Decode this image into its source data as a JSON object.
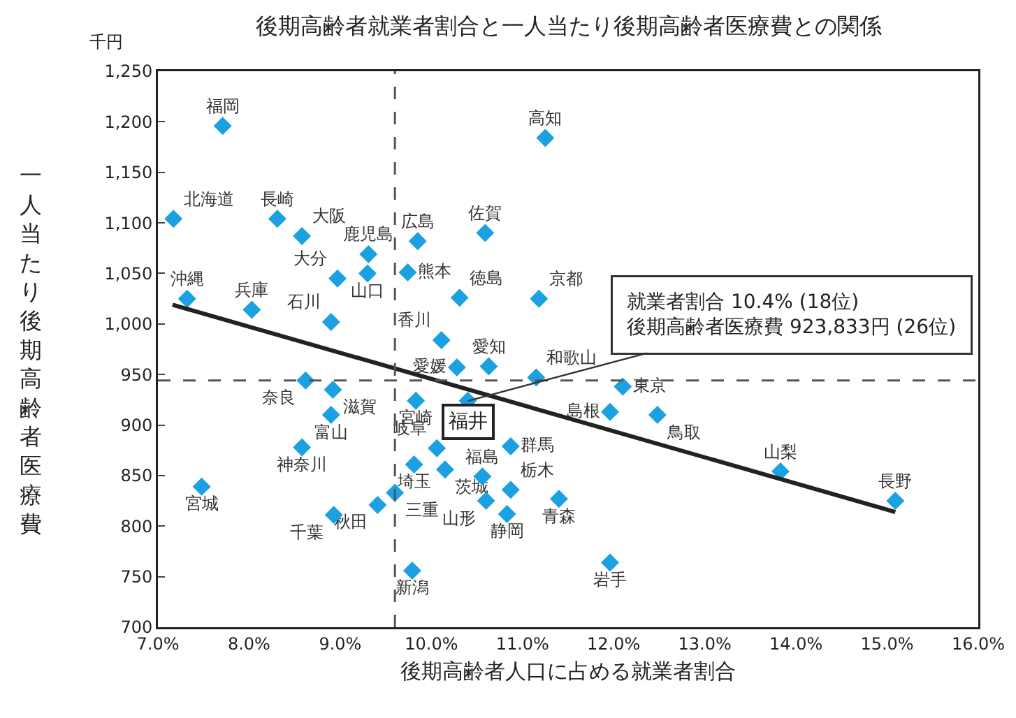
{
  "chart_data": {
    "type": "scatter",
    "title": "後期高齢者就業者割合と一人当たり後期高齢者医療費との関係",
    "xlabel": "後期高齢者人口に占める就業者割合",
    "ylabel": "一人当たり後期高齢者医療費",
    "annotations": [
      "千円",
      {
        "text": "就業者割合 10.4% (18位)\n後期高齢者医療費 923,833円 (26位)",
        "x": 10.4,
        "y": 923.833
      }
    ],
    "marker": "diamond",
    "xlim": [
      7,
      16
    ],
    "ylim": [
      700,
      1250
    ],
    "xticks": [
      {
        "value": 7,
        "label": "7.0%"
      },
      {
        "value": 8,
        "label": "8.0%"
      },
      {
        "value": 9,
        "label": "9.0%"
      },
      {
        "value": 10,
        "label": "10.0%"
      },
      {
        "value": 11,
        "label": "11.0%"
      },
      {
        "value": 12,
        "label": "12.0%"
      },
      {
        "value": 13,
        "label": "13.0%"
      },
      {
        "value": 14,
        "label": "14.0%"
      },
      {
        "value": 15,
        "label": "15.0%"
      },
      {
        "value": 16,
        "label": "16.0%"
      }
    ],
    "yticks": [
      700,
      750,
      800,
      850,
      900,
      950,
      {
        "value": 1000,
        "label": "1,000"
      },
      {
        "value": 1050,
        "label": "1,050"
      },
      {
        "value": 1100,
        "label": "1,100"
      },
      {
        "value": 1150,
        "label": "1,150"
      },
      {
        "value": 1200,
        "label": "1,200"
      },
      {
        "value": 1250,
        "label": "1,250"
      }
    ],
    "ref_lines": [
      {
        "axis": "x",
        "value": 9.6,
        "color": "#555555",
        "line_style": "dashed"
      },
      {
        "axis": "y",
        "value": 944,
        "color": "#555555",
        "line_style": "dashed"
      }
    ],
    "series": [
      {
        "name": "福岡",
        "color": "#1ba1e2",
        "x": [
          7.71
        ],
        "values": [
          1196
        ]
      },
      {
        "name": "北海道",
        "color": "#1ba1e2",
        "x": [
          7.17
        ],
        "values": [
          1104
        ]
      },
      {
        "name": "長崎",
        "color": "#1ba1e2",
        "x": [
          8.31
        ],
        "values": [
          1104
        ]
      },
      {
        "name": "大阪",
        "color": "#1ba1e2",
        "x": [
          8.58
        ],
        "values": [
          1087
        ]
      },
      {
        "name": "鹿児島",
        "color": "#1ba1e2",
        "x": [
          9.31
        ],
        "values": [
          1069
        ]
      },
      {
        "name": "大分",
        "color": "#1ba1e2",
        "x": [
          8.97
        ],
        "values": [
          1045
        ]
      },
      {
        "name": "山口",
        "color": "#1ba1e2",
        "x": [
          9.3
        ],
        "values": [
          1050
        ]
      },
      {
        "name": "沖縄",
        "color": "#1ba1e2",
        "x": [
          7.32
        ],
        "values": [
          1025
        ]
      },
      {
        "name": "兵庫",
        "color": "#1ba1e2",
        "x": [
          8.03
        ],
        "values": [
          1014
        ]
      },
      {
        "name": "石川",
        "color": "#1ba1e2",
        "x": [
          8.9
        ],
        "values": [
          1002
        ]
      },
      {
        "name": "広島",
        "color": "#1ba1e2",
        "x": [
          9.85
        ],
        "values": [
          1082
        ]
      },
      {
        "name": "熊本",
        "color": "#1ba1e2",
        "x": [
          9.74
        ],
        "values": [
          1051
        ]
      },
      {
        "name": "佐賀",
        "color": "#1ba1e2",
        "x": [
          10.59
        ],
        "values": [
          1090
        ]
      },
      {
        "name": "高知",
        "color": "#1ba1e2",
        "x": [
          11.25
        ],
        "values": [
          1184
        ]
      },
      {
        "name": "徳島",
        "color": "#1ba1e2",
        "x": [
          10.31
        ],
        "values": [
          1026
        ]
      },
      {
        "name": "京都",
        "color": "#1ba1e2",
        "x": [
          11.18
        ],
        "values": [
          1025
        ]
      },
      {
        "name": "香川",
        "color": "#1ba1e2",
        "x": [
          10.11
        ],
        "values": [
          984
        ]
      },
      {
        "name": "愛媛",
        "color": "#1ba1e2",
        "x": [
          10.28
        ],
        "values": [
          957
        ]
      },
      {
        "name": "愛知",
        "color": "#1ba1e2",
        "x": [
          10.63
        ],
        "values": [
          958
        ]
      },
      {
        "name": "和歌山",
        "color": "#1ba1e2",
        "x": [
          11.15
        ],
        "values": [
          947
        ]
      },
      {
        "name": "奈良",
        "color": "#1ba1e2",
        "x": [
          8.62
        ],
        "values": [
          944
        ]
      },
      {
        "name": "滋賀",
        "color": "#1ba1e2",
        "x": [
          8.92
        ],
        "values": [
          935
        ]
      },
      {
        "name": "富山",
        "color": "#1ba1e2",
        "x": [
          8.9
        ],
        "values": [
          910
        ]
      },
      {
        "name": "宮崎",
        "color": "#1ba1e2",
        "x": [
          9.83
        ],
        "values": [
          924
        ]
      },
      {
        "name": "福井",
        "color": "#1ba1e2",
        "x": [
          10.4
        ],
        "values": [
          924
        ]
      },
      {
        "name": "神奈川",
        "color": "#1ba1e2",
        "x": [
          8.58
        ],
        "values": [
          878
        ]
      },
      {
        "name": "岐阜",
        "color": "#1ba1e2",
        "x": [
          10.06
        ],
        "values": [
          877
        ]
      },
      {
        "name": "群馬",
        "color": "#1ba1e2",
        "x": [
          10.87
        ],
        "values": [
          879
        ]
      },
      {
        "name": "宮城",
        "color": "#1ba1e2",
        "x": [
          7.48
        ],
        "values": [
          839
        ]
      },
      {
        "name": "埼玉",
        "color": "#1ba1e2",
        "x": [
          9.81
        ],
        "values": [
          861
        ]
      },
      {
        "name": "茨城",
        "color": "#1ba1e2",
        "x": [
          10.15
        ],
        "values": [
          856
        ]
      },
      {
        "name": "福島",
        "color": "#1ba1e2",
        "x": [
          10.56
        ],
        "values": [
          849
        ]
      },
      {
        "name": "栃木",
        "color": "#1ba1e2",
        "x": [
          10.87
        ],
        "values": [
          836
        ]
      },
      {
        "name": "三重",
        "color": "#1ba1e2",
        "x": [
          9.6
        ],
        "values": [
          833
        ]
      },
      {
        "name": "秋田",
        "color": "#1ba1e2",
        "x": [
          9.41
        ],
        "values": [
          821
        ]
      },
      {
        "name": "千葉",
        "color": "#1ba1e2",
        "x": [
          8.93
        ],
        "values": [
          811
        ]
      },
      {
        "name": "山形",
        "color": "#1ba1e2",
        "x": [
          10.6
        ],
        "values": [
          825
        ]
      },
      {
        "name": "静岡",
        "color": "#1ba1e2",
        "x": [
          10.83
        ],
        "values": [
          812
        ]
      },
      {
        "name": "青森",
        "color": "#1ba1e2",
        "x": [
          11.4
        ],
        "values": [
          827
        ]
      },
      {
        "name": "新潟",
        "color": "#1ba1e2",
        "x": [
          9.79
        ],
        "values": [
          756
        ]
      },
      {
        "name": "東京",
        "color": "#1ba1e2",
        "x": [
          12.1
        ],
        "values": [
          938
        ]
      },
      {
        "name": "島根",
        "color": "#1ba1e2",
        "x": [
          11.96
        ],
        "values": [
          913
        ]
      },
      {
        "name": "鳥取",
        "color": "#1ba1e2",
        "x": [
          12.48
        ],
        "values": [
          910
        ]
      },
      {
        "name": "山梨",
        "color": "#1ba1e2",
        "x": [
          13.83
        ],
        "values": [
          854
        ]
      },
      {
        "name": "長野",
        "color": "#1ba1e2",
        "x": [
          15.09
        ],
        "values": [
          825
        ]
      },
      {
        "name": "岩手",
        "color": "#1ba1e2",
        "x": [
          11.96
        ],
        "values": [
          764
        ]
      },
      {
        "type": "line",
        "marker": "none",
        "color": "#222222",
        "x": [
          7.16,
          15.09
        ],
        "values": [
          1019,
          814
        ]
      }
    ]
  }
}
